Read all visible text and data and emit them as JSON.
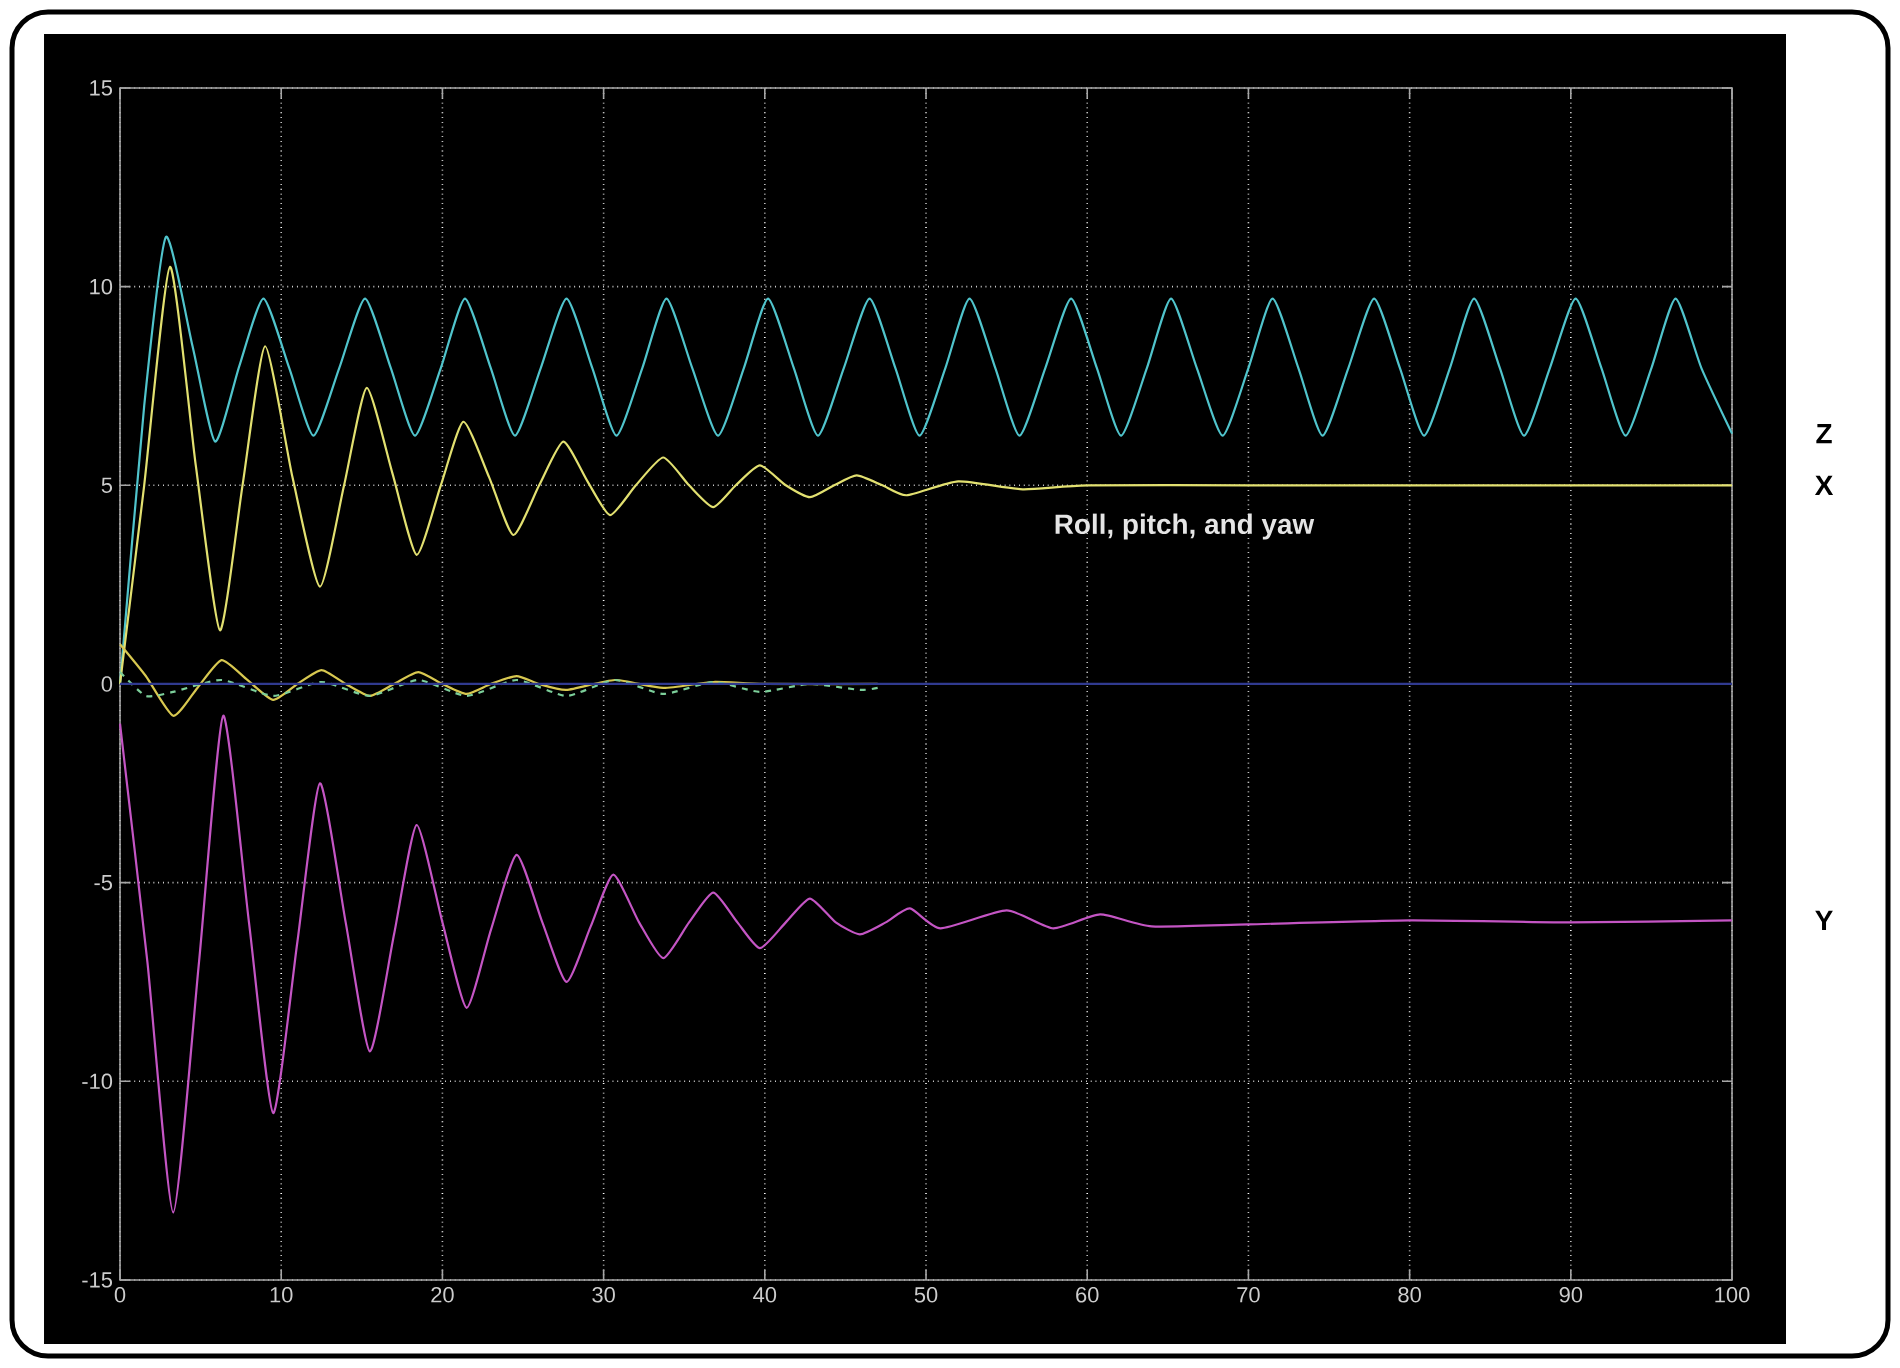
{
  "chart_data": {
    "type": "line",
    "xlim": [
      0,
      100
    ],
    "ylim": [
      -15,
      15
    ],
    "xticks": [
      0,
      10,
      20,
      30,
      40,
      50,
      60,
      70,
      80,
      90,
      100
    ],
    "yticks": [
      -15,
      -10,
      -5,
      0,
      5,
      10,
      15
    ],
    "grid": true,
    "annotations": [
      "Roll, pitch, and yaw"
    ],
    "series": [
      {
        "name": "Z",
        "color": "#50c4cc",
        "line_style": "solid",
        "x": [
          0,
          1.5,
          2.85,
          4.5,
          5.9,
          7.4,
          8.9,
          10.5,
          12.0,
          13.6,
          15.2,
          16.8,
          18.3,
          19.9,
          21.4,
          23.0,
          24.5,
          26.1,
          27.7,
          29.3,
          30.8,
          32.4,
          33.9,
          35.5,
          37.1,
          38.7,
          40.2,
          41.8,
          43.3,
          44.9,
          46.5,
          48.1,
          49.6,
          51.2,
          52.7,
          54.3,
          55.8,
          57.4,
          59.0,
          60.6,
          62.1,
          63.7,
          65.2,
          66.8,
          68.4,
          70.0,
          71.5,
          73.1,
          74.6,
          76.2,
          77.8,
          79.4,
          80.9,
          82.5,
          84.0,
          85.6,
          87.1,
          88.7,
          90.3,
          91.9,
          93.4,
          95.0,
          96.5,
          98.1,
          100
        ],
        "values": [
          0,
          7,
          11.25,
          8.5,
          6.1,
          8,
          9.7,
          7.95,
          6.25,
          7.95,
          9.7,
          7.95,
          6.25,
          7.95,
          9.7,
          7.95,
          6.25,
          7.95,
          9.7,
          7.95,
          6.25,
          7.95,
          9.7,
          7.95,
          6.25,
          7.95,
          9.7,
          7.95,
          6.25,
          7.95,
          9.7,
          7.95,
          6.25,
          7.95,
          9.7,
          7.95,
          6.25,
          7.95,
          9.7,
          7.95,
          6.25,
          7.95,
          9.7,
          7.95,
          6.25,
          7.95,
          9.7,
          7.95,
          6.25,
          7.95,
          9.7,
          7.95,
          6.25,
          7.95,
          9.7,
          7.95,
          6.25,
          7.95,
          9.7,
          7.95,
          6.25,
          7.95,
          9.7,
          7.95,
          6.3
        ]
      },
      {
        "name": "X",
        "color": "#e2e070",
        "line_style": "solid",
        "x": [
          0,
          1.5,
          3.1,
          4.7,
          6.2,
          7.6,
          9.0,
          10.7,
          12.4,
          13.9,
          15.3,
          16.9,
          18.4,
          19.9,
          21.3,
          22.9,
          24.4,
          26.0,
          27.5,
          29.0,
          30.4,
          32.0,
          33.7,
          35.3,
          36.8,
          38.2,
          39.7,
          41.3,
          42.8,
          44.3,
          45.7,
          47.3,
          48.8,
          52,
          56,
          60,
          70,
          80,
          90,
          100
        ],
        "values": [
          0,
          5,
          10.5,
          5.5,
          1.35,
          5,
          8.5,
          5.2,
          2.45,
          5,
          7.45,
          5.3,
          3.25,
          5,
          6.6,
          5.2,
          3.75,
          5,
          6.1,
          5.1,
          4.25,
          5,
          5.7,
          5,
          4.45,
          5,
          5.5,
          5,
          4.7,
          5,
          5.25,
          5,
          4.75,
          5.1,
          4.9,
          5,
          5,
          5,
          5,
          5
        ]
      },
      {
        "name": "Y",
        "color": "#c455c4",
        "line_style": "solid",
        "x": [
          0,
          1.7,
          3.3,
          4.9,
          6.4,
          8.0,
          9.5,
          11.0,
          12.4,
          14.0,
          15.5,
          17.0,
          18.4,
          20.0,
          21.5,
          23.0,
          24.6,
          26.2,
          27.7,
          29.2,
          30.6,
          32.2,
          33.7,
          35.3,
          36.8,
          38.3,
          39.7,
          41.3,
          42.8,
          44.4,
          45.9,
          47.5,
          49.0,
          50.9,
          55,
          57.9,
          60.8,
          64,
          70,
          80,
          90,
          100
        ],
        "values": [
          -1.0,
          -7,
          -13.3,
          -7,
          -0.8,
          -6,
          -10.8,
          -6.5,
          -2.5,
          -6,
          -9.25,
          -6.3,
          -3.55,
          -6,
          -8.15,
          -6.2,
          -4.3,
          -6,
          -7.5,
          -6.1,
          -4.8,
          -6,
          -6.9,
          -6,
          -5.25,
          -6,
          -6.65,
          -6,
          -5.4,
          -6,
          -6.3,
          -6,
          -5.65,
          -6.15,
          -5.7,
          -6.15,
          -5.8,
          -6.1,
          -6.05,
          -5.95,
          -6,
          -5.95
        ]
      },
      {
        "color": "#d8c850",
        "line_style": "solid",
        "x": [
          0,
          1.6,
          3.3,
          4.8,
          6.3,
          7.9,
          9.5,
          11.0,
          12.5,
          14.0,
          15.5,
          17.0,
          18.5,
          20.0,
          21.5,
          23.0,
          24.6,
          26.0,
          27.7,
          30.7,
          33.7,
          36.8,
          40,
          47
        ],
        "values": [
          1.0,
          0.2,
          -0.8,
          -0.1,
          0.6,
          0.1,
          -0.4,
          0,
          0.35,
          0,
          -0.3,
          0,
          0.3,
          0,
          -0.25,
          0,
          0.2,
          0,
          -0.15,
          0.1,
          -0.1,
          0.05,
          0,
          0
        ]
      },
      {
        "color": "#7ccf9a",
        "line_style": "dashed",
        "x": [
          0,
          1.6,
          3.3,
          6.3,
          9.5,
          12.5,
          15.5,
          18.5,
          21.5,
          24.6,
          27.7,
          30.7,
          33.7,
          36.8,
          39.7,
          42.8,
          45.9,
          47
        ],
        "values": [
          0.3,
          -0.3,
          -0.2,
          0.1,
          -0.3,
          0.05,
          -0.3,
          0.1,
          -0.3,
          0.1,
          -0.3,
          0.1,
          -0.25,
          0.05,
          -0.2,
          0,
          -0.15,
          -0.1
        ]
      },
      {
        "color": "#303a90",
        "line_style": "solid",
        "x": [
          0,
          100
        ],
        "values": [
          0,
          0
        ]
      }
    ]
  }
}
